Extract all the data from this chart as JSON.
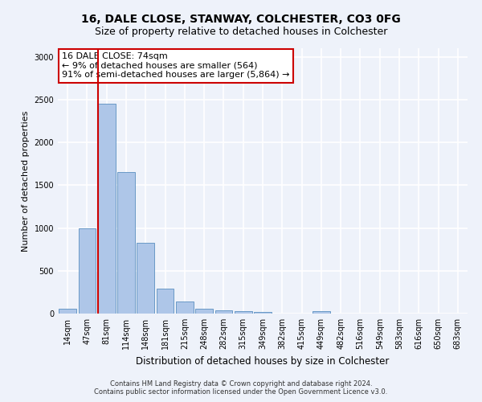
{
  "title1": "16, DALE CLOSE, STANWAY, COLCHESTER, CO3 0FG",
  "title2": "Size of property relative to detached houses in Colchester",
  "xlabel": "Distribution of detached houses by size in Colchester",
  "ylabel": "Number of detached properties",
  "footnote1": "Contains HM Land Registry data © Crown copyright and database right 2024.",
  "footnote2": "Contains public sector information licensed under the Open Government Licence v3.0.",
  "annotation_line1": "16 DALE CLOSE: 74sqm",
  "annotation_line2": "← 9% of detached houses are smaller (564)",
  "annotation_line3": "91% of semi-detached houses are larger (5,864) →",
  "bar_labels": [
    "14sqm",
    "47sqm",
    "81sqm",
    "114sqm",
    "148sqm",
    "181sqm",
    "215sqm",
    "248sqm",
    "282sqm",
    "315sqm",
    "349sqm",
    "382sqm",
    "415sqm",
    "449sqm",
    "482sqm",
    "516sqm",
    "549sqm",
    "583sqm",
    "616sqm",
    "650sqm",
    "683sqm"
  ],
  "bar_values": [
    55,
    1000,
    2450,
    1650,
    830,
    290,
    145,
    55,
    40,
    30,
    20,
    0,
    0,
    30,
    0,
    0,
    0,
    0,
    0,
    0,
    0
  ],
  "bar_color": "#aec6e8",
  "bar_edge_color": "#5a8fc0",
  "vline_color": "#cc0000",
  "vline_x": 1.575,
  "annotation_box_color": "#ffffff",
  "annotation_box_edge": "#cc0000",
  "ylim": [
    0,
    3100
  ],
  "yticks": [
    0,
    500,
    1000,
    1500,
    2000,
    2500,
    3000
  ],
  "background_color": "#eef2fa",
  "grid_color": "#ffffff",
  "title_fontsize": 10,
  "subtitle_fontsize": 9,
  "ylabel_fontsize": 8,
  "xlabel_fontsize": 8.5,
  "tick_fontsize": 7,
  "annotation_fontsize": 8,
  "footnote_fontsize": 6
}
